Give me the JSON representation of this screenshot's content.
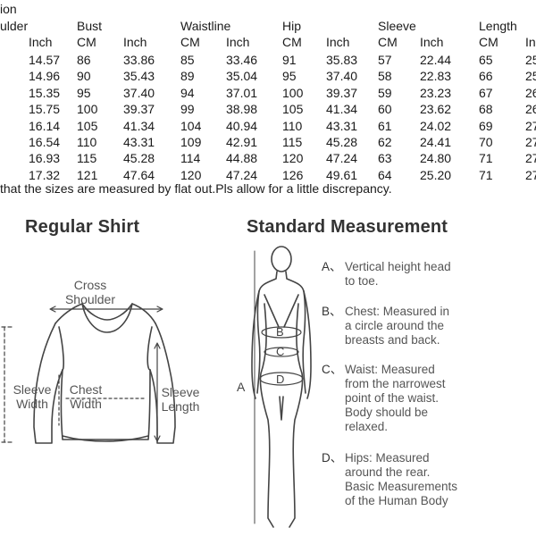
{
  "table": {
    "title_fragment": "ion",
    "headers": [
      "ulder",
      "Bust",
      "Waistline",
      "Hip",
      "Sleeve",
      "Length"
    ],
    "subheaders": [
      "Inch",
      "CM",
      "Inch",
      "CM",
      "Inch",
      "CM",
      "Inch",
      "CM",
      "Inch",
      "CM",
      "In"
    ],
    "rows": [
      [
        "14.57",
        "86",
        "33.86",
        "85",
        "33.46",
        "91",
        "35.83",
        "57",
        "22.44",
        "65",
        "25"
      ],
      [
        "14.96",
        "90",
        "35.43",
        "89",
        "35.04",
        "95",
        "37.40",
        "58",
        "22.83",
        "66",
        "25"
      ],
      [
        "15.35",
        "95",
        "37.40",
        "94",
        "37.01",
        "100",
        "39.37",
        "59",
        "23.23",
        "67",
        "26"
      ],
      [
        "15.75",
        "100",
        "39.37",
        "99",
        "38.98",
        "105",
        "41.34",
        "60",
        "23.62",
        "68",
        "26"
      ],
      [
        "16.14",
        "105",
        "41.34",
        "104",
        "40.94",
        "110",
        "43.31",
        "61",
        "24.02",
        "69",
        "27"
      ],
      [
        "16.54",
        "110",
        "43.31",
        "109",
        "42.91",
        "115",
        "45.28",
        "62",
        "24.41",
        "70",
        "27"
      ],
      [
        "16.93",
        "115",
        "45.28",
        "114",
        "44.88",
        "120",
        "47.24",
        "63",
        "24.80",
        "71",
        "27"
      ],
      [
        "17.32",
        "121",
        "47.64",
        "120",
        "47.24",
        "126",
        "49.61",
        "64",
        "25.20",
        "71",
        "27"
      ]
    ],
    "note": "that the sizes are measured by flat out.Pls allow for a little discrepancy."
  },
  "shirt": {
    "title": "Regular Shirt",
    "cross_shoulder": [
      "Cross",
      "Shoulder"
    ],
    "sleeve_width": [
      "Sleeve",
      "Width"
    ],
    "chest_width": [
      "Chest",
      "Width"
    ],
    "sleeve_length": [
      "Sleeve",
      "Length"
    ]
  },
  "measure": {
    "title": "Standard Measurement",
    "body_labels": {
      "a": "A",
      "b": "B",
      "c": "C",
      "d": "D"
    },
    "items": [
      {
        "key": "A、",
        "lines": [
          "Vertical height head",
          "to toe."
        ]
      },
      {
        "key": "B、",
        "lines": [
          "Chest: Measured in",
          "a circle around the",
          "breasts and back."
        ]
      },
      {
        "key": "C、",
        "lines": [
          "Waist: Measured",
          "from the narrowest",
          "point of the waist.",
          "Body should be",
          "relaxed."
        ]
      },
      {
        "key": "D、",
        "lines": [
          "Hips: Measured",
          "around the rear.",
          "Basic Measurements",
          "of the Human Body"
        ]
      }
    ]
  }
}
